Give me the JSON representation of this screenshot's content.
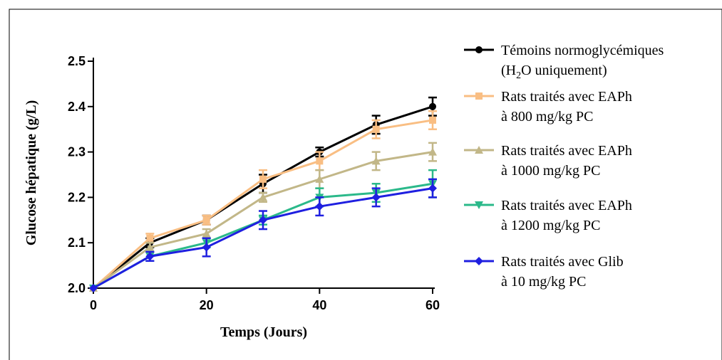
{
  "chart_data": {
    "type": "line",
    "xlabel": "Temps (Jours)",
    "ylabel": "Glucose hépatique (g/L)",
    "xlim": [
      0,
      60
    ],
    "ylim": [
      2.0,
      2.5
    ],
    "x_ticks": [
      "0",
      "20",
      "40",
      "60"
    ],
    "y_ticks": [
      "2.0",
      "2.1",
      "2.2",
      "2.3",
      "2.4",
      "2.5"
    ],
    "grid": false,
    "legend_position": "right",
    "x": [
      0,
      10,
      20,
      30,
      40,
      50,
      60
    ],
    "series": [
      {
        "legend_line1": "Témoins normoglycémiques",
        "legend_line2_pre": "(H",
        "legend_line2_sub": "2",
        "legend_line2_post": "O uniquement)",
        "color": "#000000",
        "marker": "circle",
        "values": [
          2.0,
          2.1,
          2.15,
          2.23,
          2.3,
          2.36,
          2.4
        ],
        "errors": [
          0.0,
          0.01,
          0.01,
          0.02,
          0.01,
          0.02,
          0.02
        ]
      },
      {
        "legend_line1": "Rats traités avec EAPh",
        "legend_line2": "à 800 mg/kg PC",
        "color": "#F9BE83",
        "marker": "square",
        "values": [
          2.0,
          2.11,
          2.15,
          2.24,
          2.28,
          2.35,
          2.37
        ],
        "errors": [
          0.0,
          0.01,
          0.01,
          0.02,
          0.02,
          0.02,
          0.02
        ]
      },
      {
        "legend_line1": "Rats traités avec EAPh",
        "legend_line2": "à 1000 mg/kg PC",
        "color": "#C2B788",
        "marker": "triangle-up",
        "values": [
          2.0,
          2.09,
          2.12,
          2.2,
          2.24,
          2.28,
          2.3
        ],
        "errors": [
          0.0,
          0.01,
          0.01,
          0.01,
          0.02,
          0.02,
          0.02
        ]
      },
      {
        "legend_line1": "Rats traités avec EAPh",
        "legend_line2": "à 1200 mg/kg PC",
        "color": "#2BB98A",
        "marker": "triangle-down",
        "values": [
          2.0,
          2.07,
          2.1,
          2.15,
          2.2,
          2.21,
          2.23
        ],
        "errors": [
          0.0,
          0.01,
          0.01,
          0.01,
          0.02,
          0.02,
          0.03
        ]
      },
      {
        "legend_line1": "Rats traités avec Glib",
        "legend_line2": "à 10 mg/kg PC",
        "color": "#1F1FE0",
        "marker": "diamond",
        "values": [
          2.0,
          2.07,
          2.09,
          2.15,
          2.18,
          2.2,
          2.22
        ],
        "errors": [
          0.0,
          0.01,
          0.02,
          0.02,
          0.02,
          0.02,
          0.02
        ]
      }
    ]
  }
}
